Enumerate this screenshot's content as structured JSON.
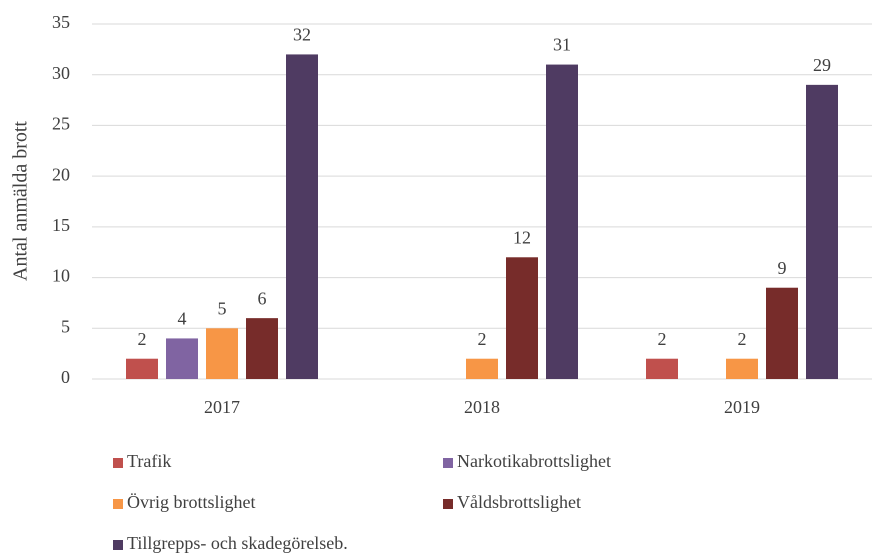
{
  "chart_data": {
    "type": "bar",
    "y_label": "Antal anmälda brott",
    "categories": [
      "2017",
      "2018",
      "2019"
    ],
    "series": [
      {
        "name": "Trafik",
        "color": "#c0504d",
        "values": [
          2,
          null,
          2
        ]
      },
      {
        "name": "Narkotikabrottslighet",
        "color": "#8064a2",
        "values": [
          4,
          null,
          null
        ]
      },
      {
        "name": "Övrig brottslighet",
        "color": "#f79646",
        "values": [
          5,
          2,
          2
        ]
      },
      {
        "name": "Våldsbrottslighet",
        "color": "#772c2a",
        "values": [
          6,
          12,
          9
        ]
      },
      {
        "name": "Tillgrepps- och skadegörelseb.",
        "color": "#4f3b62",
        "values": [
          32,
          31,
          29
        ]
      }
    ],
    "ylim": [
      0,
      35
    ],
    "yticks": [
      0,
      5,
      10,
      15,
      20,
      25,
      30,
      35
    ],
    "grid": true,
    "legend": "bottom"
  }
}
